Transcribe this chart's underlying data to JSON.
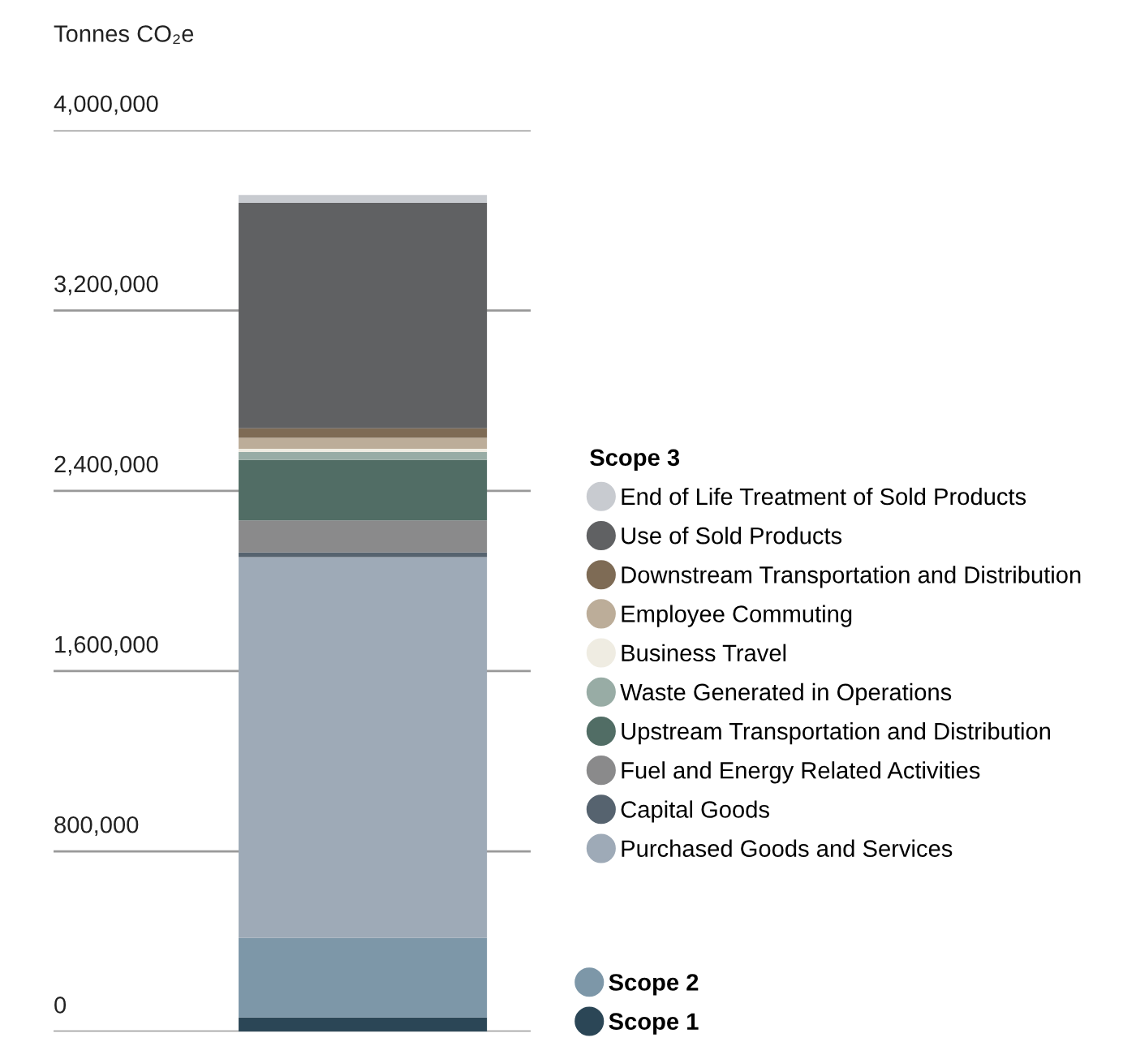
{
  "chart_data": {
    "type": "bar",
    "stacked": true,
    "categories": [
      null
    ],
    "ylabel": "Tonnes CO₂e",
    "legend_title": "Scope 3",
    "series": [
      {
        "name": "Scope 1",
        "color": "#2b4656",
        "values": [
          63000
        ]
      },
      {
        "name": "Scope 2",
        "color": "#7d97a8",
        "values": [
          353000
        ]
      },
      {
        "name": "Purchased Goods and Services",
        "color": "#9eaab7",
        "values": [
          1690000
        ]
      },
      {
        "name": "Capital Goods",
        "color": "#56636f",
        "values": [
          20000
        ]
      },
      {
        "name": "Fuel and Energy Related Activities",
        "color": "#8a8a8b",
        "values": [
          143000
        ]
      },
      {
        "name": "Upstream Transportation and Distribution",
        "color": "#516d65",
        "values": [
          268000
        ]
      },
      {
        "name": "Waste Generated in Operations",
        "color": "#98aca5",
        "values": [
          35000
        ]
      },
      {
        "name": "Business Travel",
        "color": "#efece2",
        "values": [
          14000
        ]
      },
      {
        "name": "Employee Commuting",
        "color": "#bcad99",
        "values": [
          49000
        ]
      },
      {
        "name": "Downstream Transportation and Distribution",
        "color": "#7e6b55",
        "values": [
          42000
        ]
      },
      {
        "name": "Use of Sold Products",
        "color": "#606163",
        "values": [
          1001000
        ]
      },
      {
        "name": "End of Life Treatment of Sold Products",
        "color": "#c8cbd0",
        "values": [
          35000
        ]
      }
    ],
    "ylim": [
      0,
      4000000
    ],
    "yticks": [
      {
        "value": 0,
        "label": "0"
      },
      {
        "value": 800000,
        "label": "800,000"
      },
      {
        "value": 1600000,
        "label": "1,600,000"
      },
      {
        "value": 2400000,
        "label": "2,400,000"
      },
      {
        "value": 3200000,
        "label": "3,200,000"
      },
      {
        "value": 4000000,
        "label": "4,000,000"
      }
    ],
    "grid": "y",
    "legend": "right",
    "tick_labels": "y"
  }
}
